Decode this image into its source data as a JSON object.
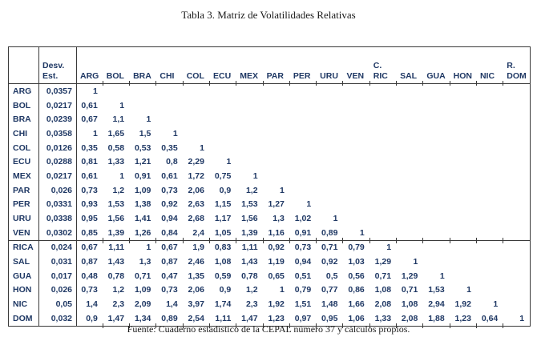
{
  "title": "Tabla 3. Matriz de Volatilidades Relativas",
  "source": "Fuente: Cuaderno estadístico de la CEPAL número 37 y cálculos propios.",
  "colors": {
    "table_text": "#1f3864",
    "table_border": "#3a3a3a",
    "document_text": "#1a1a1a"
  },
  "table": {
    "corner_label": "",
    "desv_header": "Desv.\nEst.",
    "columns": [
      "ARG",
      "BOL",
      "BRA",
      "CHI",
      "COL",
      "ECU",
      "MEX",
      "PAR",
      "PER",
      "URU",
      "VEN",
      "C.\nRIC",
      "SAL",
      "GUA",
      "HON",
      "NIC",
      "R.\nDOM"
    ],
    "group_separator_row_index": 11,
    "rows": [
      {
        "label": "ARG",
        "desv": "0,0357",
        "values": [
          "1"
        ]
      },
      {
        "label": "BOL",
        "desv": "0,0217",
        "values": [
          "0,61",
          "1"
        ]
      },
      {
        "label": "BRA",
        "desv": "0,0239",
        "values": [
          "0,67",
          "1,1",
          "1"
        ]
      },
      {
        "label": "CHI",
        "desv": "0,0358",
        "values": [
          "1",
          "1,65",
          "1,5",
          "1"
        ]
      },
      {
        "label": "COL",
        "desv": "0,0126",
        "values": [
          "0,35",
          "0,58",
          "0,53",
          "0,35",
          "1"
        ]
      },
      {
        "label": "ECU",
        "desv": "0,0288",
        "values": [
          "0,81",
          "1,33",
          "1,21",
          "0,8",
          "2,29",
          "1"
        ]
      },
      {
        "label": "MEX",
        "desv": "0,0217",
        "values": [
          "0,61",
          "1",
          "0,91",
          "0,61",
          "1,72",
          "0,75",
          "1"
        ]
      },
      {
        "label": "PAR",
        "desv": "0,026",
        "values": [
          "0,73",
          "1,2",
          "1,09",
          "0,73",
          "2,06",
          "0,9",
          "1,2",
          "1"
        ]
      },
      {
        "label": "PER",
        "desv": "0,0331",
        "values": [
          "0,93",
          "1,53",
          "1,38",
          "0,92",
          "2,63",
          "1,15",
          "1,53",
          "1,27",
          "1"
        ]
      },
      {
        "label": "URU",
        "desv": "0,0338",
        "values": [
          "0,95",
          "1,56",
          "1,41",
          "0,94",
          "2,68",
          "1,17",
          "1,56",
          "1,3",
          "1,02",
          "1"
        ]
      },
      {
        "label": "VEN",
        "desv": "0,0302",
        "values": [
          "0,85",
          "1,39",
          "1,26",
          "0,84",
          "2,4",
          "1,05",
          "1,39",
          "1,16",
          "0,91",
          "0,89",
          "1"
        ]
      },
      {
        "label": "RICA",
        "desv": "0,024",
        "values": [
          "0,67",
          "1,11",
          "1",
          "0,67",
          "1,9",
          "0,83",
          "1,11",
          "0,92",
          "0,73",
          "0,71",
          "0,79",
          "1"
        ]
      },
      {
        "label": "SAL",
        "desv": "0,031",
        "values": [
          "0,87",
          "1,43",
          "1,3",
          "0,87",
          "2,46",
          "1,08",
          "1,43",
          "1,19",
          "0,94",
          "0,92",
          "1,03",
          "1,29",
          "1"
        ]
      },
      {
        "label": "GUA",
        "desv": "0,017",
        "values": [
          "0,48",
          "0,78",
          "0,71",
          "0,47",
          "1,35",
          "0,59",
          "0,78",
          "0,65",
          "0,51",
          "0,5",
          "0,56",
          "0,71",
          "1,29",
          "1"
        ]
      },
      {
        "label": "HON",
        "desv": "0,026",
        "values": [
          "0,73",
          "1,2",
          "1,09",
          "0,73",
          "2,06",
          "0,9",
          "1,2",
          "1",
          "0,79",
          "0,77",
          "0,86",
          "1,08",
          "0,71",
          "1,53",
          "1"
        ]
      },
      {
        "label": "NIC",
        "desv": "0,05",
        "values": [
          "1,4",
          "2,3",
          "2,09",
          "1,4",
          "3,97",
          "1,74",
          "2,3",
          "1,92",
          "1,51",
          "1,48",
          "1,66",
          "2,08",
          "1,08",
          "2,94",
          "1,92",
          "1"
        ]
      },
      {
        "label": "DOM",
        "desv": "0,032",
        "values": [
          "0,9",
          "1,47",
          "1,34",
          "0,89",
          "2,54",
          "1,11",
          "1,47",
          "1,23",
          "0,97",
          "0,95",
          "1,06",
          "1,33",
          "2,08",
          "1,88",
          "1,23",
          "0,64",
          "1"
        ]
      }
    ]
  }
}
